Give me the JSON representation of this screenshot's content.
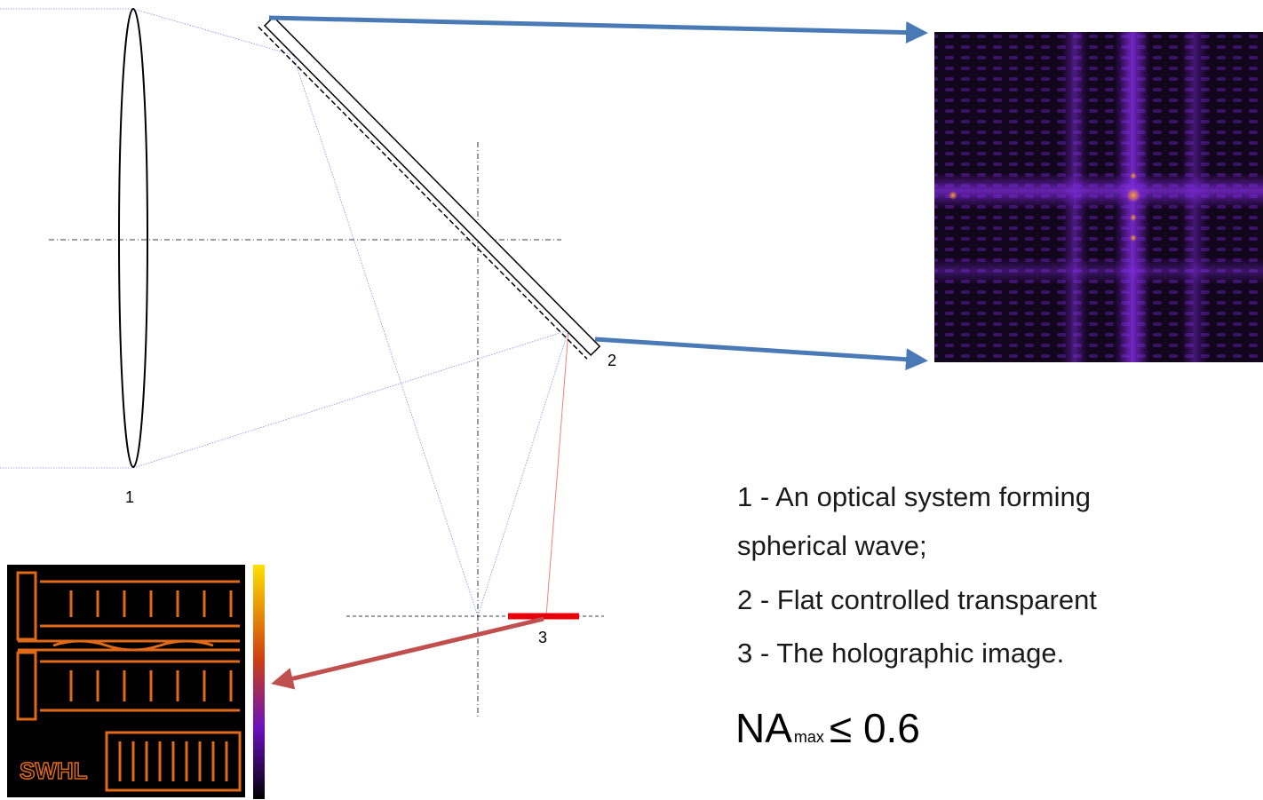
{
  "labels": {
    "lens": "1",
    "plate": "2",
    "image": "3"
  },
  "legend": {
    "item1_line1": "1 - An optical system forming",
    "item1_line2": "spherical wave;",
    "item2": "2 - Flat controlled transparent",
    "item3": "3 - The holographic image."
  },
  "na": {
    "base": "NA",
    "sub": "max",
    "rest": "≤ 0.6"
  },
  "hologram": {
    "label": "SWHL"
  }
}
